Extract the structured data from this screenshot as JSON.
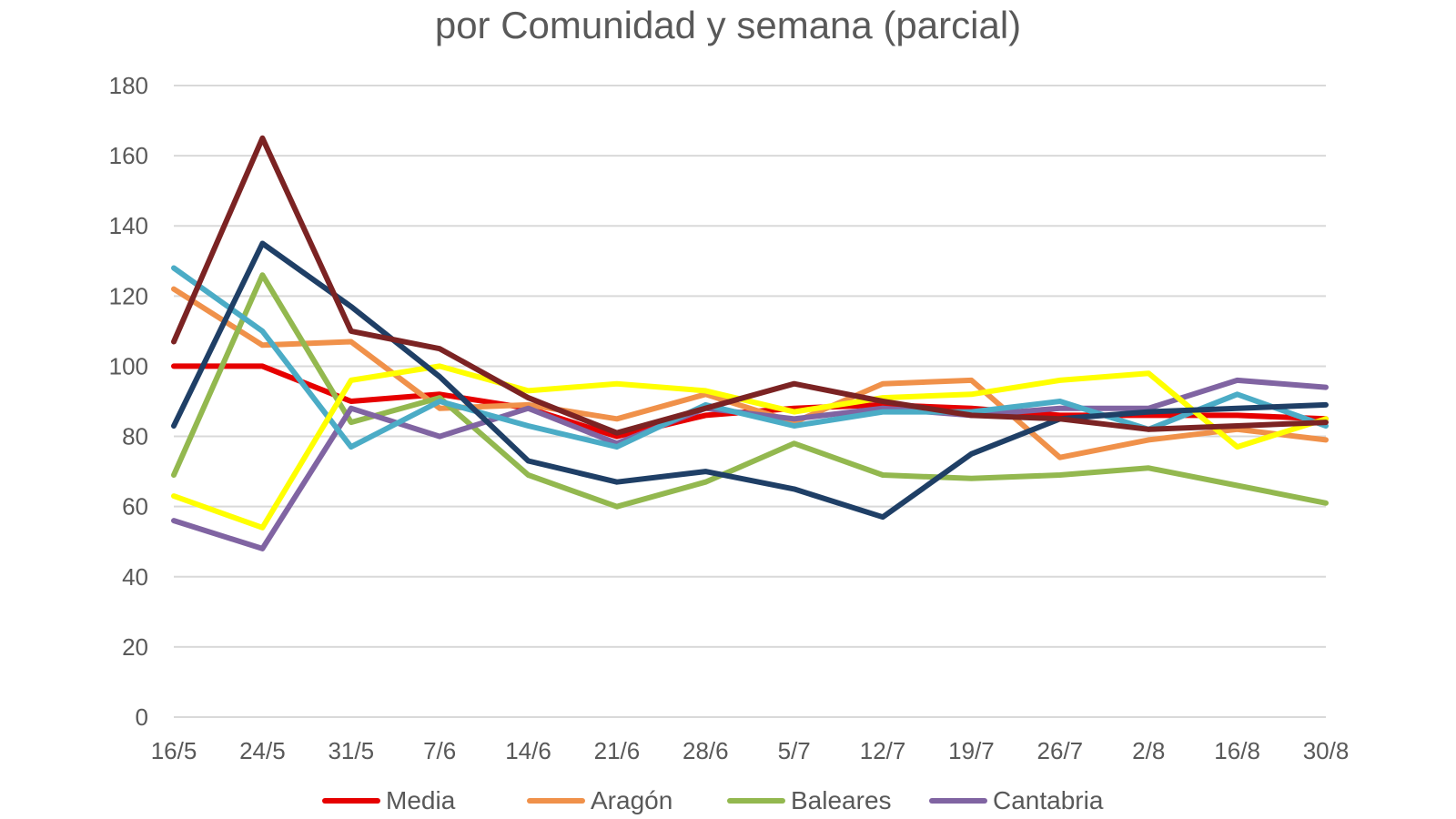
{
  "title": "por Comunidad y semana (parcial)",
  "chart_data": {
    "type": "line",
    "title": "por Comunidad y semana (parcial)",
    "xlabel": "",
    "ylabel": "",
    "ylim": [
      0,
      180
    ],
    "yticks": [
      0,
      20,
      40,
      60,
      80,
      100,
      120,
      140,
      160,
      180
    ],
    "grid": true,
    "legend_position": "bottom",
    "categories": [
      "16/5",
      "24/5",
      "31/5",
      "7/6",
      "14/6",
      "21/6",
      "28/6",
      "5/7",
      "12/7",
      "19/7",
      "26/7",
      "2/8",
      "16/8",
      "30/8"
    ],
    "series": [
      {
        "name": "Media",
        "color": "#e60000",
        "in_legend": true,
        "values": [
          100,
          100,
          90,
          92,
          88,
          80,
          86,
          88,
          89,
          88,
          86,
          86,
          86,
          85
        ]
      },
      {
        "name": "Aragón",
        "color": "#f0914a",
        "in_legend": true,
        "values": [
          122,
          106,
          107,
          88,
          89,
          85,
          92,
          84,
          95,
          96,
          74,
          79,
          82,
          79
        ]
      },
      {
        "name": "Baleares",
        "color": "#93b84f",
        "in_legend": true,
        "values": [
          69,
          126,
          84,
          91,
          69,
          60,
          67,
          78,
          69,
          68,
          69,
          71,
          66,
          61
        ]
      },
      {
        "name": "Cantabria",
        "color": "#8064a2",
        "in_legend": true,
        "values": [
          56,
          48,
          88,
          80,
          88,
          78,
          88,
          85,
          88,
          86,
          88,
          88,
          96,
          94
        ]
      },
      {
        "name": "",
        "color": "#4bacc6",
        "in_legend": false,
        "values": [
          128,
          110,
          77,
          90,
          83,
          77,
          89,
          83,
          87,
          87,
          90,
          82,
          92,
          83
        ]
      },
      {
        "name": "",
        "color": "#ffff00",
        "in_legend": false,
        "values": [
          63,
          54,
          96,
          100,
          93,
          95,
          93,
          87,
          91,
          92,
          96,
          98,
          77,
          85
        ]
      },
      {
        "name": "",
        "color": "#1f3f66",
        "in_legend": false,
        "values": [
          83,
          135,
          117,
          97,
          73,
          67,
          70,
          65,
          57,
          75,
          85,
          87,
          88,
          89
        ]
      },
      {
        "name": "",
        "color": "#7b2323",
        "in_legend": false,
        "values": [
          107,
          165,
          110,
          105,
          91,
          81,
          88,
          95,
          90,
          86,
          85,
          82,
          83,
          84
        ]
      }
    ]
  }
}
